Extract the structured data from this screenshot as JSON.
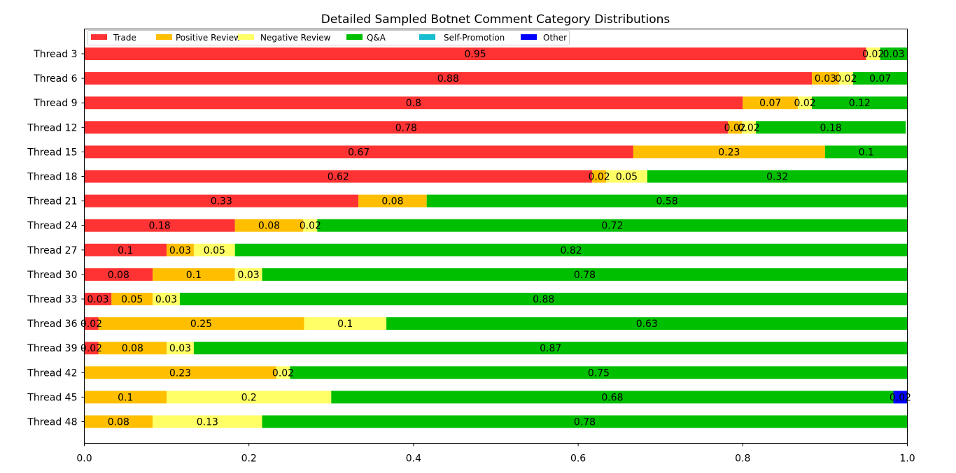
{
  "chart_data": {
    "type": "bar",
    "orientation": "horizontal",
    "stacked": true,
    "title": "Detailed Sampled Botnet Comment Category Distributions",
    "xlim": [
      0,
      1
    ],
    "x_ticks": [
      "0.0",
      "0.2",
      "0.4",
      "0.6",
      "0.8",
      "1.0"
    ],
    "legend_position": "top-left",
    "grid": false,
    "categories": [
      "Thread 3",
      "Thread 6",
      "Thread 9",
      "Thread 12",
      "Thread 15",
      "Thread 18",
      "Thread 21",
      "Thread 24",
      "Thread 27",
      "Thread 30",
      "Thread 33",
      "Thread 36",
      "Thread 39",
      "Thread 42",
      "Thread 45",
      "Thread 48"
    ],
    "series": [
      {
        "name": "Trade",
        "color": "#ff3333",
        "values": [
          0.95,
          0.884,
          0.8,
          0.782,
          0.667,
          0.617,
          0.333,
          0.183,
          0.1,
          0.083,
          0.033,
          0.017,
          0.017,
          0,
          0,
          0
        ],
        "labels": [
          "0.95",
          "0.88",
          "0.8",
          "0.78",
          "0.67",
          "0.62",
          "0.33",
          "0.18",
          "0.1",
          "0.08",
          "0.03",
          "0.02",
          "0.02",
          "",
          "",
          ""
        ]
      },
      {
        "name": "Positive Review",
        "color": "#ffbf00",
        "values": [
          0,
          0.033,
          0.067,
          0.017,
          0.233,
          0.017,
          0.083,
          0.083,
          0.033,
          0.1,
          0.05,
          0.25,
          0.083,
          0.233,
          0.1,
          0.083
        ],
        "labels": [
          "",
          "0.03",
          "0.07",
          "0.02",
          "0.23",
          "0.02",
          "0.08",
          "0.08",
          "0.03",
          "0.1",
          "0.05",
          "0.25",
          "0.08",
          "0.23",
          "0.1",
          "0.08"
        ]
      },
      {
        "name": "Negative Review",
        "color": "#ffff66",
        "values": [
          0.017,
          0.017,
          0.017,
          0.017,
          0,
          0.05,
          0,
          0.017,
          0.05,
          0.033,
          0.033,
          0.1,
          0.033,
          0.017,
          0.2,
          0.133
        ],
        "labels": [
          "0.02",
          "0.02",
          "0.02",
          "0.02",
          "",
          "0.05",
          "",
          "0.02",
          "0.05",
          "0.03",
          "0.03",
          "0.1",
          "0.03",
          "0.02",
          "0.2",
          "0.13"
        ]
      },
      {
        "name": "Q&A",
        "color": "#00bf00",
        "values": [
          0.033,
          0.066,
          0.116,
          0.182,
          0.1,
          0.316,
          0.584,
          0.717,
          0.817,
          0.784,
          0.884,
          0.633,
          0.867,
          0.75,
          0.683,
          0.784
        ],
        "labels": [
          "0.03",
          "0.07",
          "0.12",
          "0.18",
          "0.1",
          "0.32",
          "0.58",
          "0.72",
          "0.82",
          "0.78",
          "0.88",
          "0.63",
          "0.87",
          "0.75",
          "0.68",
          "0.78"
        ]
      },
      {
        "name": "Self-Promotion",
        "color": "#17becf",
        "values": [
          0,
          0,
          0,
          0,
          0,
          0,
          0,
          0,
          0,
          0,
          0,
          0,
          0,
          0,
          0,
          0
        ],
        "labels": [
          "",
          "",
          "",
          "",
          "",
          "",
          "",
          "",
          "",
          "",
          "",
          "",
          "",
          "",
          "",
          ""
        ]
      },
      {
        "name": "Other",
        "color": "#0000ff",
        "values": [
          0,
          0,
          0,
          0,
          0,
          0,
          0,
          0,
          0,
          0,
          0,
          0,
          0,
          0,
          0.017,
          0
        ],
        "labels": [
          "",
          "",
          "",
          "",
          "",
          "",
          "",
          "",
          "",
          "",
          "",
          "",
          "",
          "",
          "0.02",
          ""
        ]
      }
    ]
  }
}
